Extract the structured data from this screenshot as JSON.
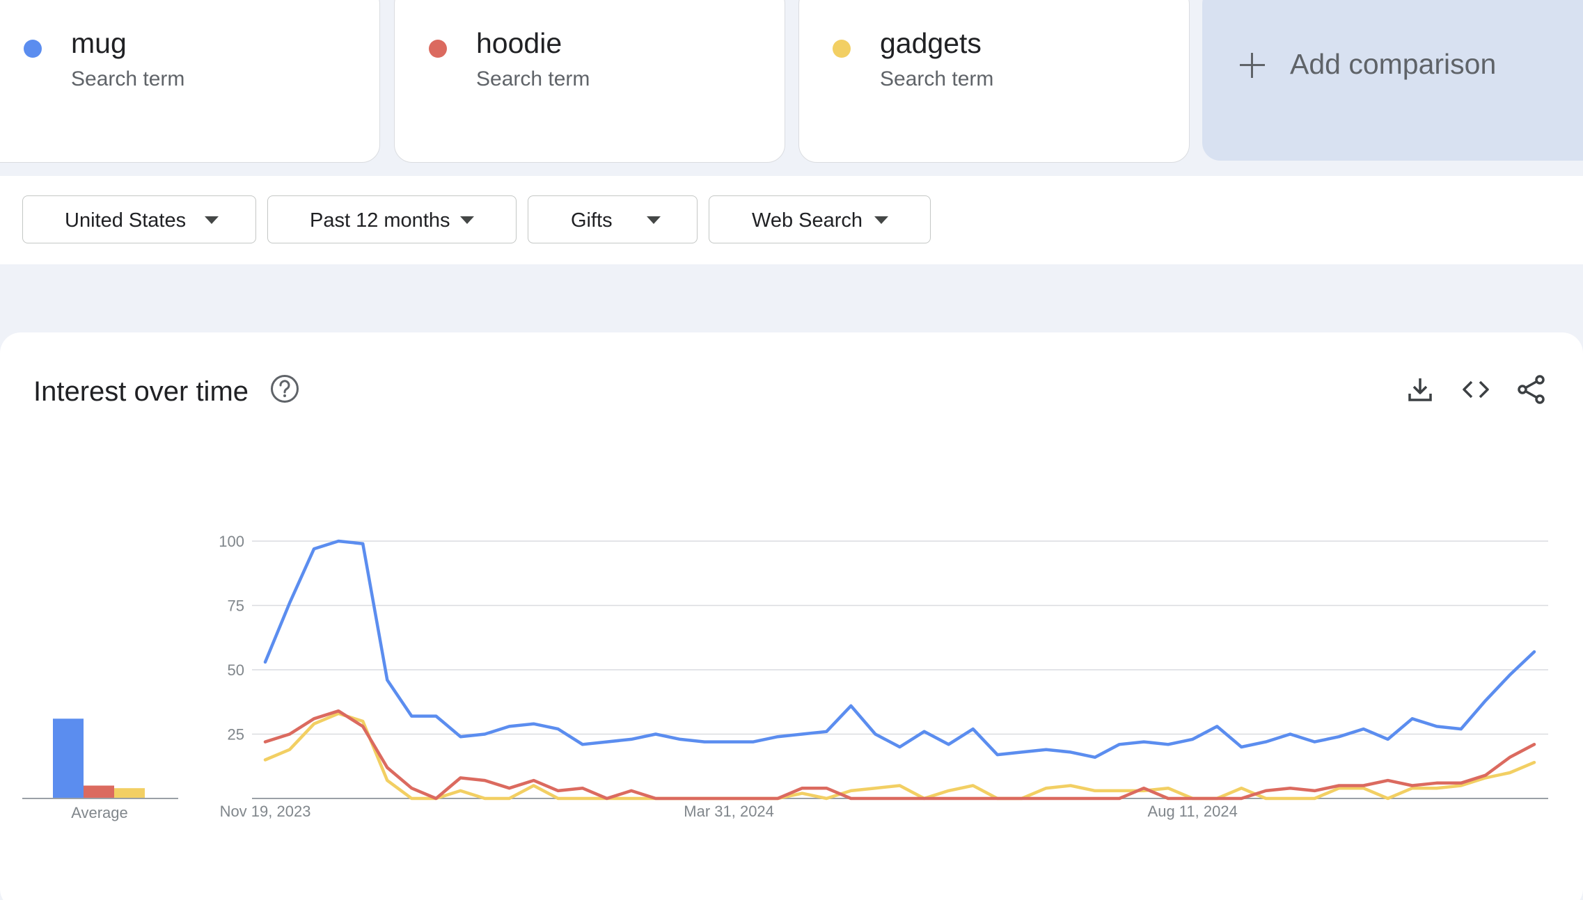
{
  "terms": [
    {
      "name": "mug",
      "subtitle": "Search term",
      "color": "#5b8def"
    },
    {
      "name": "hoodie",
      "subtitle": "Search term",
      "color": "#db6a5f"
    },
    {
      "name": "gadgets",
      "subtitle": "Search term",
      "color": "#f2cf63"
    }
  ],
  "add_comparison": {
    "label": "Add comparison",
    "icon": "plus-icon"
  },
  "filters": [
    {
      "label": "United States",
      "icon": "dropdown-caret-icon"
    },
    {
      "label": "Past 12 months",
      "icon": "dropdown-caret-icon"
    },
    {
      "label": "Gifts",
      "icon": "dropdown-caret-icon"
    },
    {
      "label": "Web Search",
      "icon": "dropdown-caret-icon"
    }
  ],
  "interest_section": {
    "title": "Interest over time",
    "help_icon": "help-circle-icon",
    "tools": [
      "download-icon",
      "embed-code-icon",
      "share-icon"
    ]
  },
  "chart_data": {
    "type": "line",
    "ylim": [
      0,
      100
    ],
    "y_ticks": [
      "100",
      "75",
      "50",
      "25"
    ],
    "x_tick_labels": [
      "Nov 19, 2023",
      "Mar 31, 2024",
      "Aug 11, 2024"
    ],
    "x_tick_indices": [
      0,
      19,
      38
    ],
    "grid": true,
    "series": [
      {
        "name": "mug",
        "color": "#5b8def",
        "values": [
          53,
          76,
          97,
          100,
          99,
          46,
          32,
          32,
          24,
          25,
          28,
          29,
          27,
          21,
          22,
          23,
          25,
          23,
          22,
          22,
          22,
          24,
          25,
          26,
          36,
          25,
          20,
          26,
          21,
          27,
          17,
          18,
          19,
          18,
          16,
          21,
          22,
          21,
          23,
          28,
          20,
          22,
          25,
          22,
          24,
          27,
          23,
          31,
          28,
          27,
          38,
          48,
          57
        ]
      },
      {
        "name": "hoodie",
        "color": "#db6a5f",
        "values": [
          22,
          25,
          31,
          34,
          28,
          12,
          4,
          0,
          8,
          7,
          4,
          7,
          3,
          4,
          0,
          3,
          0,
          0,
          0,
          0,
          0,
          0,
          4,
          4,
          0,
          0,
          0,
          0,
          0,
          0,
          0,
          0,
          0,
          0,
          0,
          0,
          4,
          0,
          0,
          0,
          0,
          3,
          4,
          3,
          5,
          5,
          7,
          5,
          6,
          6,
          9,
          16,
          21
        ]
      },
      {
        "name": "gadgets",
        "color": "#f2cf63",
        "values": [
          15,
          19,
          29,
          33,
          30,
          7,
          0,
          0,
          3,
          0,
          0,
          5,
          0,
          0,
          0,
          0,
          0,
          0,
          0,
          0,
          0,
          0,
          2,
          0,
          3,
          4,
          5,
          0,
          3,
          5,
          0,
          0,
          4,
          5,
          3,
          3,
          3,
          4,
          0,
          0,
          4,
          0,
          0,
          0,
          4,
          4,
          0,
          4,
          4,
          5,
          8,
          10,
          14
        ]
      }
    ],
    "average": {
      "label": "Average",
      "values": [
        31,
        5,
        4
      ]
    }
  }
}
